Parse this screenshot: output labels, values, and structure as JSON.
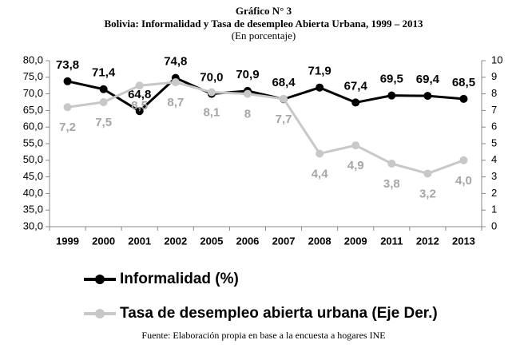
{
  "chart_data": {
    "type": "line",
    "title": "Gráfico N° 3",
    "subtitle": "Bolivia: Informalidad y Tasa de desempleo Abierta Urbana, 1999 – 2013",
    "unit_note": "(En porcentaje)",
    "source": "Fuente: Elaboración propia en base a la encuesta a hogares INE",
    "categories": [
      "1999",
      "2000",
      "2001",
      "2002",
      "2005",
      "2006",
      "2007",
      "2008",
      "2009",
      "2011",
      "2012",
      "2013"
    ],
    "series": [
      {
        "name": "Informalidad (%)",
        "color": "#000000",
        "axis": "y",
        "values": [
          73.8,
          71.4,
          64.8,
          74.8,
          70.0,
          70.9,
          68.4,
          71.9,
          67.4,
          69.5,
          69.4,
          68.5
        ],
        "value_labels": [
          "73,8",
          "71,4",
          "64,8",
          "74,8",
          "70,0",
          "70,9",
          "68,4",
          "71,9",
          "67,4",
          "69,5",
          "69,4",
          "68,5"
        ]
      },
      {
        "name": "Tasa de desempleo abierta urbana (Eje Der.)",
        "color": "#c8c8c8",
        "axis": "y2",
        "values": [
          7.2,
          7.5,
          8.5,
          8.7,
          8.1,
          8,
          7.7,
          4.4,
          4.9,
          3.8,
          3.2,
          4.0
        ],
        "value_labels": [
          "7,2",
          "7,5",
          "8,5",
          "8,7",
          "8,1",
          "8",
          "7,7",
          "4,4",
          "4,9",
          "3,8",
          "3,2",
          "4,0"
        ]
      }
    ],
    "ylim": [
      30,
      80
    ],
    "yticks": [
      {
        "value": 30,
        "label": "30,0"
      },
      {
        "value": 35,
        "label": "35,0"
      },
      {
        "value": 40,
        "label": "40,0"
      },
      {
        "value": 45,
        "label": "45,0"
      },
      {
        "value": 50,
        "label": "50,0"
      },
      {
        "value": 55,
        "label": "55,0"
      },
      {
        "value": 60,
        "label": "60,0"
      },
      {
        "value": 65,
        "label": "65,0"
      },
      {
        "value": 70,
        "label": "70,0"
      },
      {
        "value": 75,
        "label": "75,0"
      },
      {
        "value": 80,
        "label": "80,0"
      }
    ],
    "y2lim": [
      0,
      10
    ],
    "y2ticks": [
      0,
      1,
      2,
      3,
      4,
      5,
      6,
      7,
      8,
      9,
      10
    ],
    "grid": false
  }
}
